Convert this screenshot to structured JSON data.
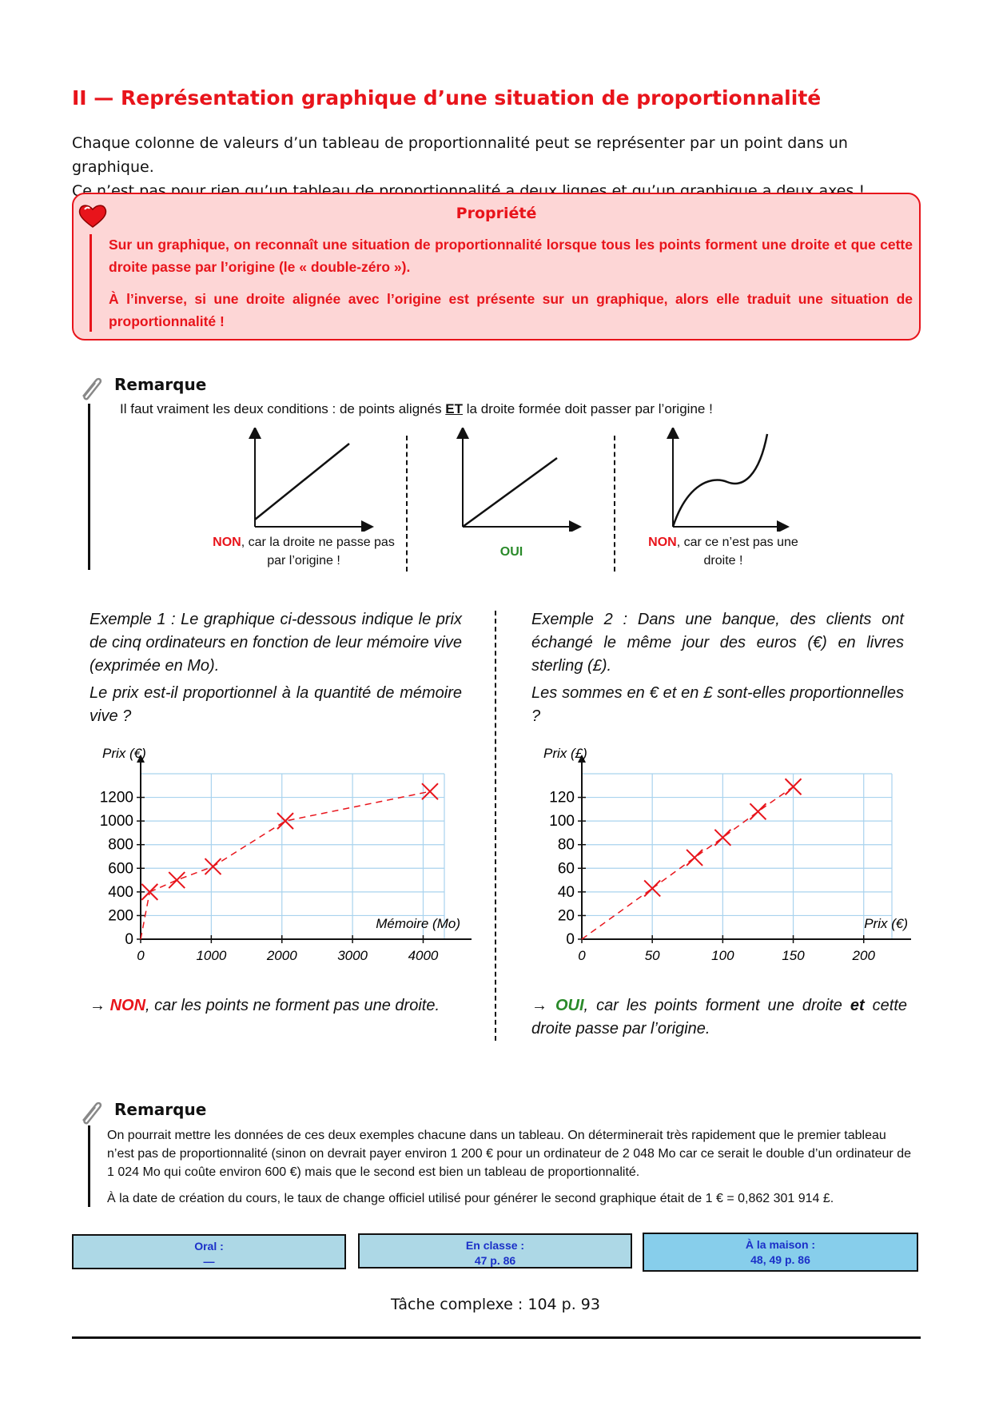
{
  "title": "II — Représentation graphique d’une situation de proportionnalité",
  "intro": [
    "Chaque colonne de valeurs d’un tableau de proportionnalité peut se représenter par un point dans un graphique.",
    "Ce n’est pas pour rien qu’un tableau de proportionnalité a deux lignes et qu’un graphique a deux axes !"
  ],
  "property": {
    "heading": "Propriété",
    "paragraphs": [
      "Sur un graphique, on reconnaît une situation de proportionnalité lorsque tous les points forment une droite et que cette droite passe par l’origine (le « double-zéro »).",
      "À l’inverse, si une droite alignée avec l’origine est présente sur un graphique, alors elle traduit une situation de proportionnalité !"
    ]
  },
  "remark1": {
    "heading": "Remarque",
    "text_before": "Il faut vraiment les deux conditions : de points alignés ",
    "text_emphasis": "ET",
    "text_after": " la droite formée doit passer par l’origine !"
  },
  "mini_graphs": [
    {
      "verdict": "NON",
      "caption": ", car la droite ne passe pas par l’origine !"
    },
    {
      "verdict": "OUI"
    },
    {
      "verdict": "NON",
      "caption": ", car ce n’est pas une droite !"
    }
  ],
  "examples": [
    {
      "paragraphs": [
        "Exemple 1 : Le graphique ci-dessous indique le prix de cinq ordinateurs en fonction de leur mémoire vive (exprimée en Mo).",
        "Le prix est-il proportionnel à la quantité de mémoire vive ?"
      ],
      "arrow": "→",
      "verdict": "NON",
      "conclusion_before": ", car les points ne forment pas une droite."
    },
    {
      "paragraphs": [
        "Exemple 2 : Dans une banque, des clients ont échangé le même jour des euros (€) en livres sterling (£).",
        "Les sommes en € et en £ sont-elles proportionnelles ?"
      ],
      "arrow": "→",
      "verdict": "OUI",
      "conclusion_before": ", car les points forment une droite ",
      "conclusion_emphasis": "et",
      "conclusion_after": " cette droite passe par l’origine."
    }
  ],
  "chart_data": [
    {
      "type": "scatter",
      "y_label": "Prix (€)",
      "x_label": "Mémoire (Mo)",
      "x": [
        128,
        512,
        1024,
        2048,
        4096
      ],
      "values": [
        400,
        500,
        615,
        1000,
        1250
      ],
      "color": "#e8141b",
      "connect": "dashed",
      "from_origin": true,
      "xlim": [
        0,
        4300
      ],
      "ylim": [
        0,
        1400
      ],
      "xticks": [
        0,
        1000,
        2000,
        3000,
        4000
      ],
      "yticks": [
        0,
        200,
        400,
        600,
        800,
        1000,
        1200
      ],
      "grid": true,
      "grid_color": "#a9d3ee"
    },
    {
      "type": "scatter",
      "y_label": "Prix (£)",
      "x_label": "Prix (€)",
      "x": [
        50,
        80,
        100,
        125,
        150
      ],
      "values": [
        43,
        69,
        86,
        108,
        129
      ],
      "color": "#e8141b",
      "connect": "dashed",
      "from_origin": true,
      "xlim": [
        0,
        220
      ],
      "ylim": [
        0,
        140
      ],
      "xticks": [
        0,
        50,
        100,
        150,
        200
      ],
      "yticks": [
        0,
        20,
        40,
        60,
        80,
        100,
        120
      ],
      "grid": true,
      "grid_color": "#a9d3ee"
    }
  ],
  "remark2": {
    "heading": "Remarque",
    "paragraphs": [
      "On pourrait mettre les données de ces deux exemples chacune dans un tableau. On déterminerait très rapidement que le premier tableau n’est pas de proportionnalité (sinon on devrait payer environ 1 200 € pour un ordinateur de 2 048 Mo car ce serait le double d’un ordinateur de 1 024 Mo qui coûte environ 600 €) mais que le second est bien un tableau de proportionnalité.",
      "À la date de création du cours, le taux de change officiel utilisé pour générer le second graphique était de 1 € = 0,862 301 914 £."
    ]
  },
  "homework": [
    {
      "label": "Oral :",
      "value": "—"
    },
    {
      "label": "En classe :",
      "value": "47 p. 86"
    },
    {
      "label": "À la maison :",
      "value": "48, 49 p. 86"
    }
  ],
  "complex_task": "Tâche complexe : 104 p. 93"
}
